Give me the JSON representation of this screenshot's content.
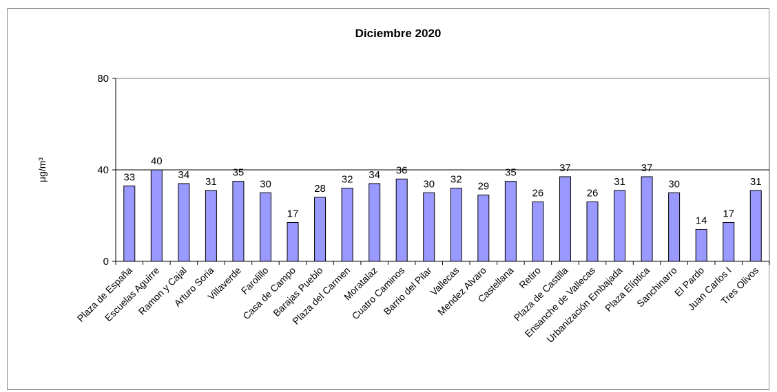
{
  "chart_data": {
    "type": "bar",
    "title": "Diciembre 2020",
    "ylabel": "µg/m³",
    "xlabel": "",
    "ylim": [
      0,
      80
    ],
    "yticks": [
      0,
      40,
      80
    ],
    "reference_line": 40,
    "bar_color": "#9999ff",
    "categories": [
      "Plaza de España",
      "Escuelas Aguirre",
      "Ramon y Cajal",
      "Arturo Soria",
      "Villaverde",
      "Farolillo",
      "Casa de Campo",
      "Barajas Pueblo",
      "Plaza del Carmen",
      "Moratalaz",
      "Cuatro Caminos",
      "Barrio del Pilar",
      "Vallecas",
      "Mendez Alvaro",
      "Castellana",
      "Retiro",
      "Plaza de Castilla",
      "Ensanche de Vallecas",
      "Urbanización Embajada",
      "Plaza Elíptica",
      "Sanchinarro",
      "El Pardo",
      "Juan Carlos I",
      "Tres Olivos"
    ],
    "values": [
      33,
      40,
      34,
      31,
      35,
      30,
      17,
      28,
      32,
      34,
      36,
      30,
      32,
      29,
      35,
      26,
      37,
      26,
      31,
      37,
      30,
      14,
      17,
      31
    ],
    "grid": false,
    "legend": "none"
  }
}
